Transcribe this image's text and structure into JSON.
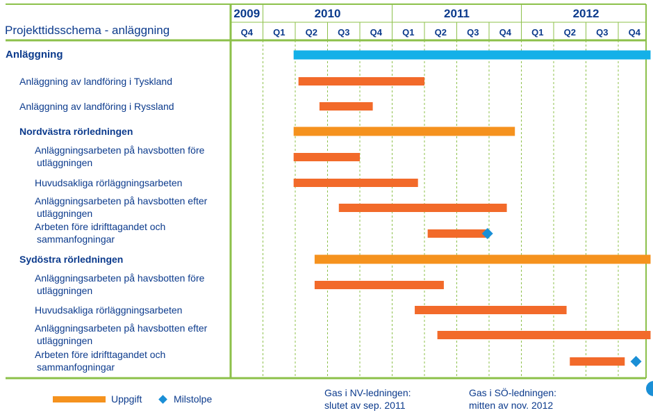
{
  "chart_data": {
    "type": "gantt",
    "title": "Projekttidsschema - anläggning",
    "years": [
      {
        "label": "2009",
        "start": 0,
        "end": 1
      },
      {
        "label": "2010",
        "start": 1,
        "end": 5
      },
      {
        "label": "2011",
        "start": 5,
        "end": 9
      },
      {
        "label": "2012",
        "start": 9,
        "end": 13
      }
    ],
    "quarters": [
      "Q4",
      "Q1",
      "Q2",
      "Q3",
      "Q4",
      "Q1",
      "Q2",
      "Q3",
      "Q4",
      "Q1",
      "Q2",
      "Q3",
      "Q4"
    ],
    "tasks": [
      {
        "label": "Anläggning",
        "level": 0,
        "start": 1.95,
        "end": 13,
        "color": "#14b0e8"
      },
      {
        "label": "Anläggning av landföring i Tyskland",
        "level": 1,
        "start": 2.1,
        "end": 6.0,
        "color": "#f26a2a"
      },
      {
        "label": "Anläggning av landföring i Ryssland",
        "level": 1,
        "start": 2.75,
        "end": 4.4,
        "color": "#f26a2a"
      },
      {
        "label": "Nordvästra rörledningen",
        "level": 1,
        "group": true,
        "start": 1.95,
        "end": 8.8,
        "color": "#f5921e"
      },
      {
        "label": "Anläggningsarbeten på havsbotten före",
        "label2": "utläggningen",
        "level": 2,
        "start": 1.95,
        "end": 4.0,
        "color": "#f26a2a"
      },
      {
        "label": "Huvudsakliga rörläggningsarbeten",
        "level": 2,
        "start": 1.95,
        "end": 5.8,
        "color": "#f26a2a"
      },
      {
        "label": "Anläggningsarbeten på havsbotten efter",
        "label2": "utläggningen",
        "level": 2,
        "start": 3.35,
        "end": 8.55,
        "color": "#f26a2a"
      },
      {
        "label": "Arbeten före idrifttagandet och",
        "label2": "sammanfogningar",
        "level": 2,
        "start": 6.1,
        "end": 7.9,
        "color": "#f26a2a",
        "milestone": 7.95
      },
      {
        "label": "Sydöstra rörledningen",
        "level": 1,
        "group": true,
        "start": 2.6,
        "end": 13,
        "color": "#f5921e"
      },
      {
        "label": "Anläggningsarbeten på havsbotten före",
        "label2": "utläggningen",
        "level": 2,
        "start": 2.6,
        "end": 6.6,
        "color": "#f26a2a"
      },
      {
        "label": "Huvudsakliga rörläggningsarbeten",
        "level": 2,
        "start": 5.7,
        "end": 10.4,
        "color": "#f26a2a"
      },
      {
        "label": "Anläggningsarbeten på havsbotten efter",
        "label2": "utläggningen",
        "level": 2,
        "start": 6.4,
        "end": 13,
        "color": "#f26a2a"
      },
      {
        "label": "Arbeten före idrifttagandet och",
        "label2": "sammanfogningar",
        "level": 2,
        "start": 10.5,
        "end": 12.2,
        "color": "#f26a2a",
        "milestone": 12.55
      }
    ],
    "legend": {
      "task": "Uppgift",
      "milestone": "Milstolpe"
    },
    "notes": [
      {
        "line1": "Gas i NV-ledningen:",
        "line2": "slutet av sep. 2011"
      },
      {
        "line1": "Gas i SÖ-ledningen:",
        "line2": "mitten av nov. 2012"
      }
    ]
  },
  "colors": {
    "grid": "#8cc04a",
    "text": "#0b3a8c",
    "milestone": "#1a8fd6",
    "legend_task": "#f5921e"
  }
}
